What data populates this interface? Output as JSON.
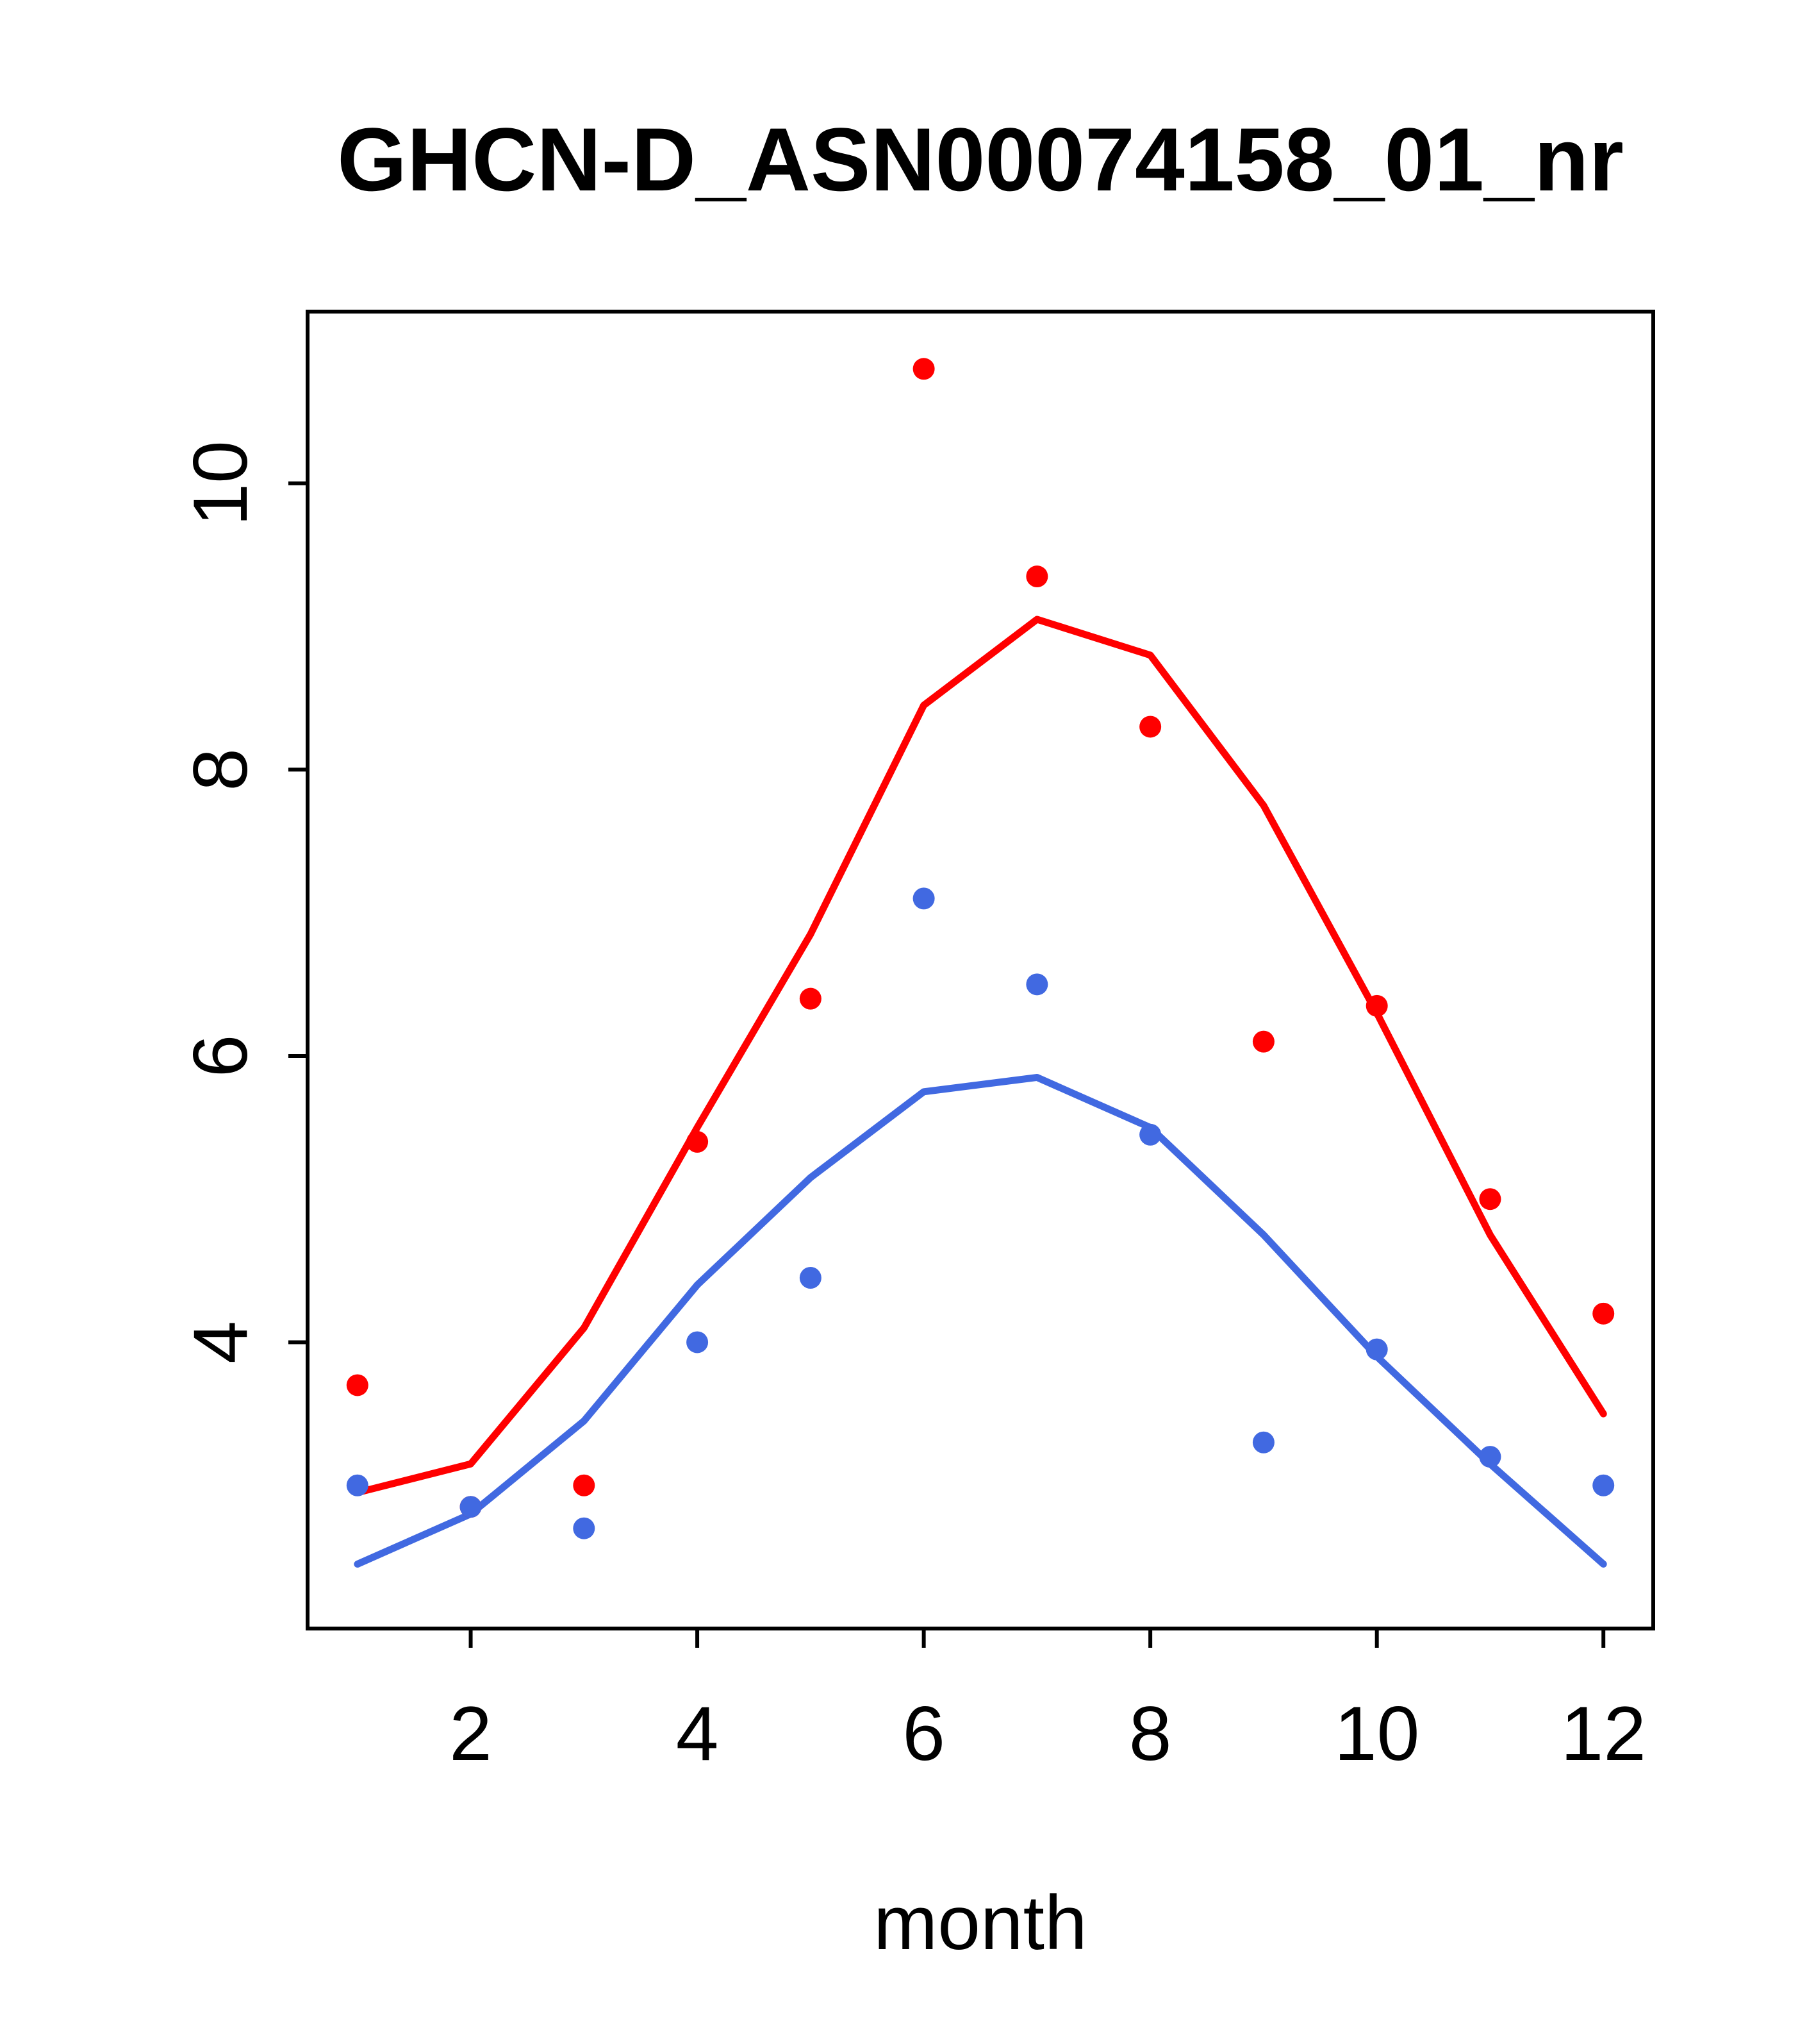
{
  "page": {
    "background": "#FFFFFF"
  },
  "colors": {
    "axis": "#000000",
    "red": "#FF0000",
    "blue": "#4169E1"
  },
  "chart_data": {
    "type": "line",
    "title": "GHCN-D_ASN00074158_01_nr",
    "xlabel": "month",
    "ylabel": "",
    "x": [
      1,
      2,
      3,
      4,
      5,
      6,
      7,
      8,
      9,
      10,
      11,
      12
    ],
    "xlim": [
      0.56,
      12.44
    ],
    "ylim": [
      2.0,
      11.2
    ],
    "x_ticks": [
      2,
      4,
      6,
      8,
      10,
      12
    ],
    "y_ticks": [
      4,
      6,
      8,
      10
    ],
    "grid": false,
    "legend": "none",
    "series": [
      {
        "name": "red-line",
        "kind": "line",
        "color": "#FF0000",
        "values": [
          2.95,
          3.15,
          4.1,
          5.5,
          6.85,
          8.45,
          9.05,
          8.8,
          7.75,
          6.3,
          4.75,
          3.5
        ]
      },
      {
        "name": "blue-line",
        "kind": "line",
        "color": "#4169E1",
        "values": [
          2.45,
          2.8,
          3.45,
          4.4,
          5.15,
          5.75,
          5.85,
          5.5,
          4.75,
          3.9,
          3.15,
          2.45
        ]
      },
      {
        "name": "red-points",
        "kind": "scatter",
        "color": "#FF0000",
        "values": [
          3.7,
          2.85,
          3.0,
          5.4,
          6.4,
          10.8,
          9.35,
          8.3,
          6.1,
          6.35,
          5.0,
          4.2
        ]
      },
      {
        "name": "blue-points",
        "kind": "scatter",
        "color": "#4169E1",
        "values": [
          3.0,
          2.85,
          2.7,
          4.0,
          4.45,
          7.1,
          6.5,
          5.45,
          3.3,
          3.95,
          3.2,
          3.0
        ]
      }
    ]
  }
}
